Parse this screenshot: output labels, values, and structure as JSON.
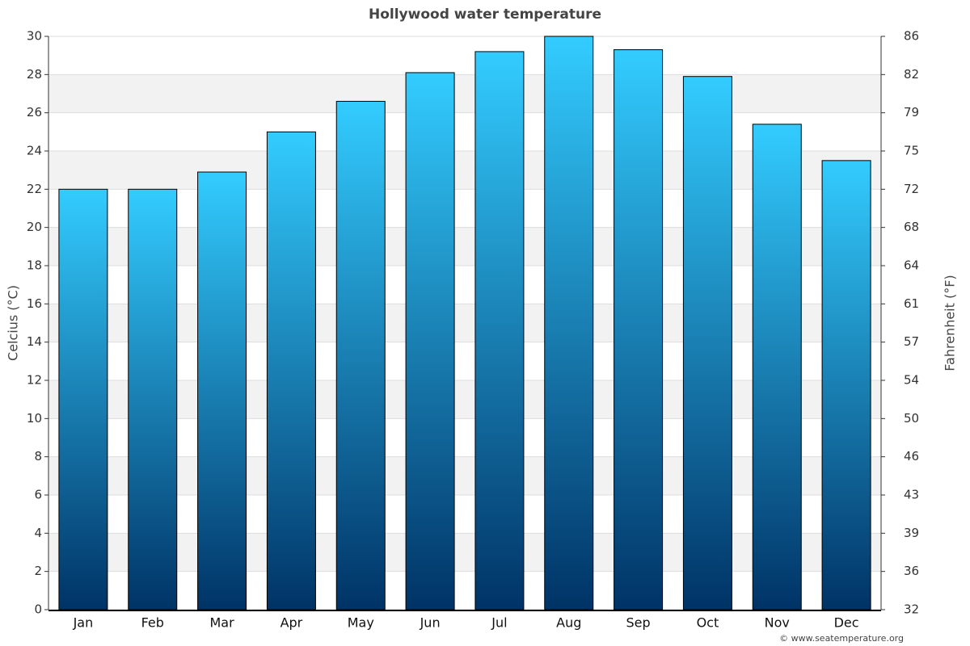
{
  "chart_data": {
    "type": "bar",
    "title": "Hollywood water temperature",
    "ylabel": "Celcius (°C)",
    "y2label": "Fahrenheit (°F)",
    "credit": "© www.seatemperature.org",
    "categories": [
      "Jan",
      "Feb",
      "Mar",
      "Apr",
      "May",
      "Jun",
      "Jul",
      "Aug",
      "Sep",
      "Oct",
      "Nov",
      "Dec"
    ],
    "values": [
      22,
      22,
      22.9,
      25,
      26.6,
      28.1,
      29.2,
      30,
      29.3,
      27.9,
      25.4,
      23.5
    ],
    "color": [
      "#33ccff",
      "#003366"
    ],
    "ylim": [
      0,
      30
    ],
    "yticks": [
      0,
      2,
      4,
      6,
      8,
      10,
      12,
      14,
      16,
      18,
      20,
      22,
      24,
      26,
      28,
      30
    ],
    "y2lim": [
      32,
      86
    ],
    "y2ticks": [
      32,
      {
        "value": 35.6,
        "label": "36"
      },
      {
        "value": 39.2,
        "label": "39"
      },
      {
        "value": 42.8,
        "label": "43"
      },
      {
        "value": 46.4,
        "label": "46"
      },
      50,
      {
        "value": 53.6,
        "label": "54"
      },
      {
        "value": 57.2,
        "label": "57"
      },
      {
        "value": 60.8,
        "label": "61"
      },
      {
        "value": 64.4,
        "label": "64"
      },
      68,
      {
        "value": 71.6,
        "label": "72"
      },
      {
        "value": 75.2,
        "label": "75"
      },
      {
        "value": 78.8,
        "label": "79"
      },
      {
        "value": 82.4,
        "label": "82"
      },
      86
    ],
    "grid": true
  }
}
